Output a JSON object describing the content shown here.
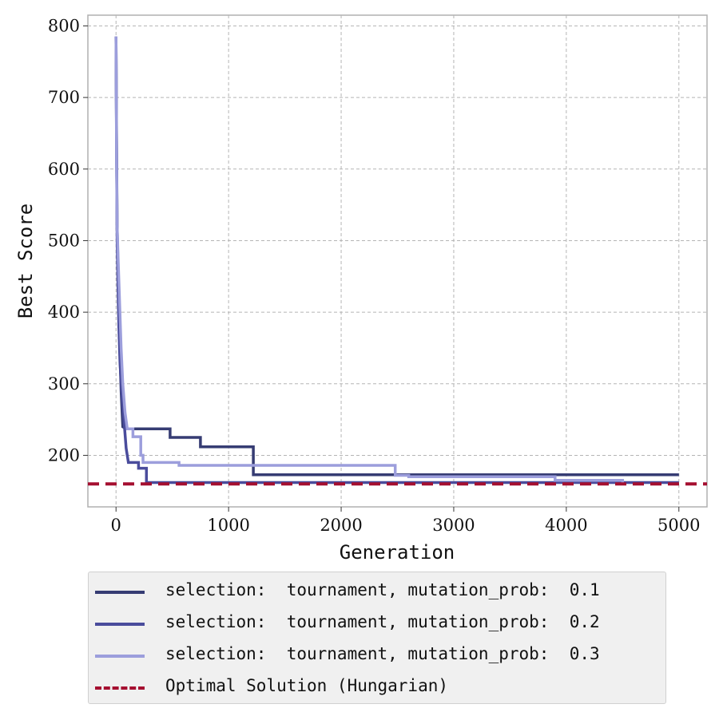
{
  "chart_data": {
    "type": "line",
    "xlabel": "Generation",
    "ylabel": "Best Score",
    "xlim": [
      -250,
      5250
    ],
    "ylim": [
      128,
      815
    ],
    "xticks": [
      0,
      1000,
      2000,
      3000,
      4000,
      5000
    ],
    "yticks": [
      200,
      300,
      400,
      500,
      600,
      700,
      800
    ],
    "grid": true,
    "legend_placement": "below plot",
    "series": [
      {
        "name": "selection:  tournament, mutation_prob:  0.1",
        "color": "#363c73",
        "style": "step",
        "points": [
          [
            0,
            785
          ],
          [
            5,
            640
          ],
          [
            10,
            520
          ],
          [
            18,
            460
          ],
          [
            25,
            400
          ],
          [
            35,
            340
          ],
          [
            45,
            290
          ],
          [
            60,
            240
          ],
          [
            90,
            237
          ],
          [
            480,
            237
          ],
          [
            480,
            225
          ],
          [
            750,
            225
          ],
          [
            750,
            212
          ],
          [
            1220,
            212
          ],
          [
            1220,
            173
          ],
          [
            5000,
            173
          ]
        ]
      },
      {
        "name": "selection:  tournament, mutation_prob:  0.2",
        "color": "#4a4c9c",
        "style": "step",
        "points": [
          [
            0,
            785
          ],
          [
            5,
            630
          ],
          [
            10,
            500
          ],
          [
            18,
            430
          ],
          [
            25,
            380
          ],
          [
            35,
            330
          ],
          [
            50,
            290
          ],
          [
            70,
            250
          ],
          [
            90,
            210
          ],
          [
            110,
            190
          ],
          [
            200,
            190
          ],
          [
            200,
            182
          ],
          [
            270,
            182
          ],
          [
            270,
            162
          ],
          [
            5000,
            162
          ]
        ]
      },
      {
        "name": "selection:  tournament, mutation_prob:  0.3",
        "color": "#9c9edc",
        "style": "step",
        "points": [
          [
            0,
            785
          ],
          [
            5,
            620
          ],
          [
            10,
            520
          ],
          [
            20,
            470
          ],
          [
            30,
            420
          ],
          [
            45,
            350
          ],
          [
            60,
            300
          ],
          [
            80,
            260
          ],
          [
            100,
            237
          ],
          [
            150,
            237
          ],
          [
            150,
            226
          ],
          [
            220,
            226
          ],
          [
            220,
            200
          ],
          [
            240,
            200
          ],
          [
            240,
            190
          ],
          [
            560,
            190
          ],
          [
            560,
            186
          ],
          [
            2480,
            186
          ],
          [
            2480,
            172
          ],
          [
            2600,
            172
          ],
          [
            2600,
            170
          ],
          [
            3900,
            170
          ],
          [
            3900,
            165
          ],
          [
            4500,
            165
          ],
          [
            4500,
            162
          ]
        ]
      },
      {
        "name": "Optimal Solution (Hungarian)",
        "color": "#a50f30",
        "style": "dashed-hline",
        "y": 160
      }
    ]
  }
}
